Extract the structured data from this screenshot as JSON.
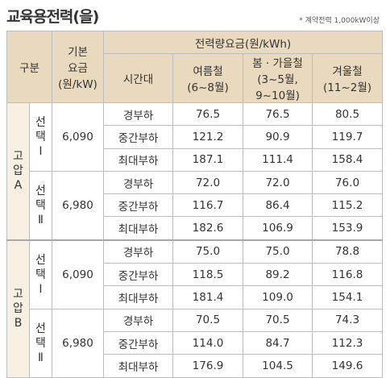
{
  "title": "교육용전력(을)",
  "note": "* 계약전력 1,000kW이상",
  "headers": {
    "group": "구분",
    "base_fee": [
      "기본",
      "요금",
      "(원/kW)"
    ],
    "rate": "전력량요금(원/kWh)",
    "time": "시간대",
    "seasons": [
      [
        "여름철",
        "(6~8월)"
      ],
      [
        "봄 · 가을철",
        "(3~5월,",
        "9~10월)"
      ],
      [
        "겨울철",
        "(11~2월)"
      ]
    ]
  },
  "groups": [
    {
      "label": [
        "고",
        "압",
        "A"
      ],
      "options": [
        {
          "label": [
            "선",
            "택",
            "Ⅰ"
          ],
          "base": "6,090",
          "rows": [
            [
              "경부하",
              "76.5",
              "76.5",
              "80.5"
            ],
            [
              "중간부하",
              "121.2",
              "90.9",
              "119.7"
            ],
            [
              "최대부하",
              "187.1",
              "111.4",
              "158.4"
            ]
          ]
        },
        {
          "label": [
            "선",
            "택",
            "Ⅱ"
          ],
          "base": "6,980",
          "rows": [
            [
              "경부하",
              "72.0",
              "72.0",
              "76.0"
            ],
            [
              "중간부하",
              "116.7",
              "86.4",
              "115.2"
            ],
            [
              "최대부하",
              "182.6",
              "106.9",
              "153.9"
            ]
          ]
        }
      ]
    },
    {
      "label": [
        "고",
        "압",
        "B"
      ],
      "options": [
        {
          "label": [
            "선",
            "택",
            "Ⅰ"
          ],
          "base": "6,090",
          "rows": [
            [
              "경부하",
              "75.0",
              "75.0",
              "78.8"
            ],
            [
              "중간부하",
              "118.5",
              "89.2",
              "116.8"
            ],
            [
              "최대부하",
              "181.4",
              "109.0",
              "154.1"
            ]
          ]
        },
        {
          "label": [
            "선",
            "택",
            "Ⅱ"
          ],
          "base": "6,980",
          "rows": [
            [
              "경부하",
              "70.5",
              "70.5",
              "74.3"
            ],
            [
              "중간부하",
              "114.0",
              "84.7",
              "112.3"
            ],
            [
              "최대부하",
              "176.9",
              "104.5",
              "149.6"
            ]
          ]
        }
      ]
    }
  ]
}
